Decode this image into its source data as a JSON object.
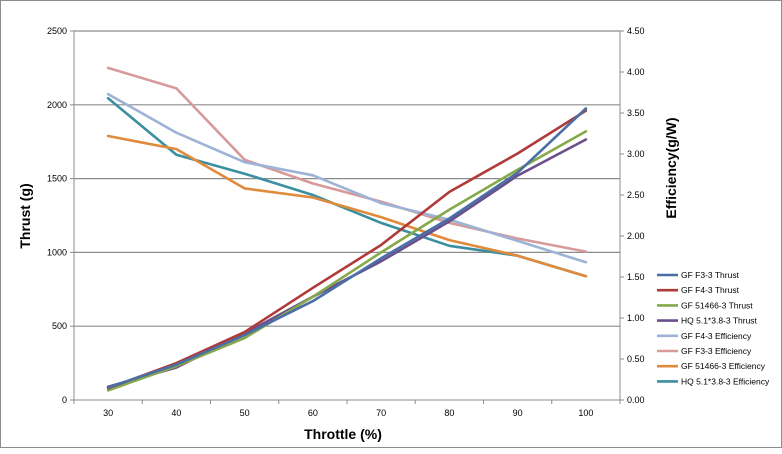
{
  "chart_data": {
    "type": "line",
    "xlabel": "Throttle (%)",
    "ylabel_left": "Thrust (g)",
    "ylabel_right": "Efficiency(g/W)",
    "x": [
      30,
      40,
      50,
      60,
      70,
      80,
      90,
      100
    ],
    "x_ticks": [
      "30",
      "40",
      "50",
      "60",
      "70",
      "80",
      "90",
      "100"
    ],
    "ylim_left": [
      0,
      2500
    ],
    "ylim_right": [
      0,
      4.5
    ],
    "y_ticks_left": [
      "0",
      "500",
      "1000",
      "1500",
      "2000",
      "2500"
    ],
    "y_ticks_right": [
      "0.00",
      "0.50",
      "1.00",
      "1.50",
      "2.00",
      "2.50",
      "3.00",
      "3.50",
      "4.00",
      "4.50"
    ],
    "grid": "horizontal",
    "legend_position": "right",
    "series": [
      {
        "name": "GF F3-3 Thrust",
        "axis": "left",
        "color": "#4a6fa5",
        "values": [
          85,
          240,
          440,
          670,
          960,
          1230,
          1540,
          1975
        ]
      },
      {
        "name": "GF F4-3 Thrust",
        "axis": "left",
        "color": "#b03a3a",
        "values": [
          80,
          250,
          460,
          760,
          1050,
          1410,
          1670,
          1960
        ]
      },
      {
        "name": "GF 51466-3 Thrust",
        "axis": "left",
        "color": "#86a94a",
        "values": [
          65,
          230,
          420,
          700,
          1000,
          1290,
          1560,
          1820
        ]
      },
      {
        "name": "HQ 5.1*3.8-3 Thrust",
        "axis": "left",
        "color": "#6b4f8c",
        "values": [
          90,
          220,
          450,
          700,
          940,
          1210,
          1520,
          1765
        ]
      },
      {
        "name": "GF F4-3 Efficiency",
        "axis": "right",
        "color": "#9db3d6",
        "values": [
          3.73,
          3.26,
          2.9,
          2.74,
          2.4,
          2.2,
          1.94,
          1.68
        ]
      },
      {
        "name": "GF F3-3 Efficiency",
        "axis": "right",
        "color": "#d79a9a",
        "values": [
          4.05,
          3.8,
          2.93,
          2.64,
          2.42,
          2.16,
          1.97,
          1.81
        ]
      },
      {
        "name": "GF 51466-3 Efficiency",
        "axis": "right",
        "color": "#e08a3c",
        "values": [
          3.22,
          3.06,
          2.58,
          2.47,
          2.23,
          1.95,
          1.76,
          1.51
        ]
      },
      {
        "name": "HQ 5.1*3.8-3 Efficiency",
        "axis": "right",
        "color": "#3a8fa0",
        "values": [
          3.68,
          2.99,
          2.76,
          2.5,
          2.16,
          1.88,
          1.76,
          1.51
        ]
      }
    ]
  }
}
